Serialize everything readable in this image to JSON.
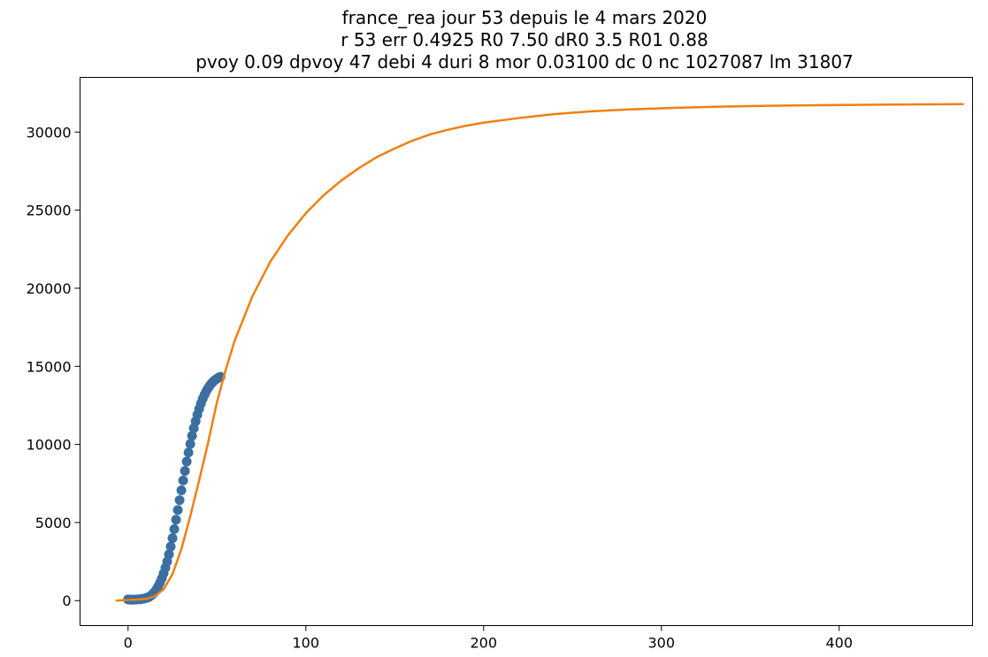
{
  "chart_data": {
    "type": "scatter",
    "title": [
      "france_rea jour 53 depuis le 4 mars 2020",
      "r 53 err 0.4925 R0 7.50 dR0 3.5 R01 0.88",
      "pvoy 0.09 dpvoy 47 debi 4 duri 8 mor 0.03100 dc 0 nc 1027087 lm 31807"
    ],
    "xlabel": "",
    "ylabel": "",
    "xlim": [
      -27,
      475
    ],
    "ylim": [
      -1600,
      33500
    ],
    "xticks": [
      0,
      100,
      200,
      300,
      400
    ],
    "yticks": [
      0,
      5000,
      10000,
      15000,
      20000,
      25000,
      30000
    ],
    "grid": false,
    "colors": {
      "observed": "#3a6fa0",
      "model": "#f07f12",
      "axes": "#000000"
    },
    "series": [
      {
        "kind": "scatter",
        "x": [
          0,
          1,
          2,
          3,
          4,
          5,
          6,
          7,
          8,
          9,
          10,
          11,
          12,
          13,
          14,
          15,
          16,
          17,
          18,
          19,
          20,
          21,
          22,
          23,
          24,
          25,
          26,
          27,
          28,
          29,
          30,
          31,
          32,
          33,
          34,
          35,
          36,
          37,
          38,
          39,
          40,
          41,
          42,
          43,
          44,
          45,
          46,
          47,
          48,
          49,
          50,
          51,
          52
        ],
        "y": [
          80,
          60,
          55,
          60,
          70,
          75,
          80,
          90,
          110,
          130,
          160,
          200,
          250,
          330,
          430,
          560,
          720,
          920,
          1150,
          1420,
          1740,
          2100,
          2500,
          2960,
          3460,
          4000,
          4580,
          5180,
          5800,
          6430,
          7060,
          7690,
          8300,
          8900,
          9480,
          10030,
          10550,
          11030,
          11480,
          11900,
          12280,
          12620,
          12920,
          13180,
          13410,
          13600,
          13770,
          13910,
          14030,
          14130,
          14210,
          14280,
          14330
        ]
      },
      {
        "kind": "line",
        "x": [
          -7,
          0,
          5,
          10,
          15,
          20,
          25,
          30,
          35,
          40,
          45,
          50,
          55,
          60,
          70,
          80,
          90,
          100,
          110,
          120,
          130,
          140,
          150,
          160,
          170,
          180,
          190,
          200,
          220,
          240,
          260,
          280,
          300,
          330,
          360,
          400,
          430,
          470
        ],
        "y": [
          0,
          40,
          60,
          110,
          280,
          720,
          1700,
          3300,
          5400,
          7700,
          10100,
          12700,
          14800,
          16650,
          19500,
          21700,
          23400,
          24800,
          25950,
          26900,
          27700,
          28400,
          28950,
          29450,
          29850,
          30150,
          30400,
          30600,
          30900,
          31150,
          31320,
          31440,
          31520,
          31620,
          31680,
          31730,
          31760,
          31790
        ]
      }
    ]
  }
}
